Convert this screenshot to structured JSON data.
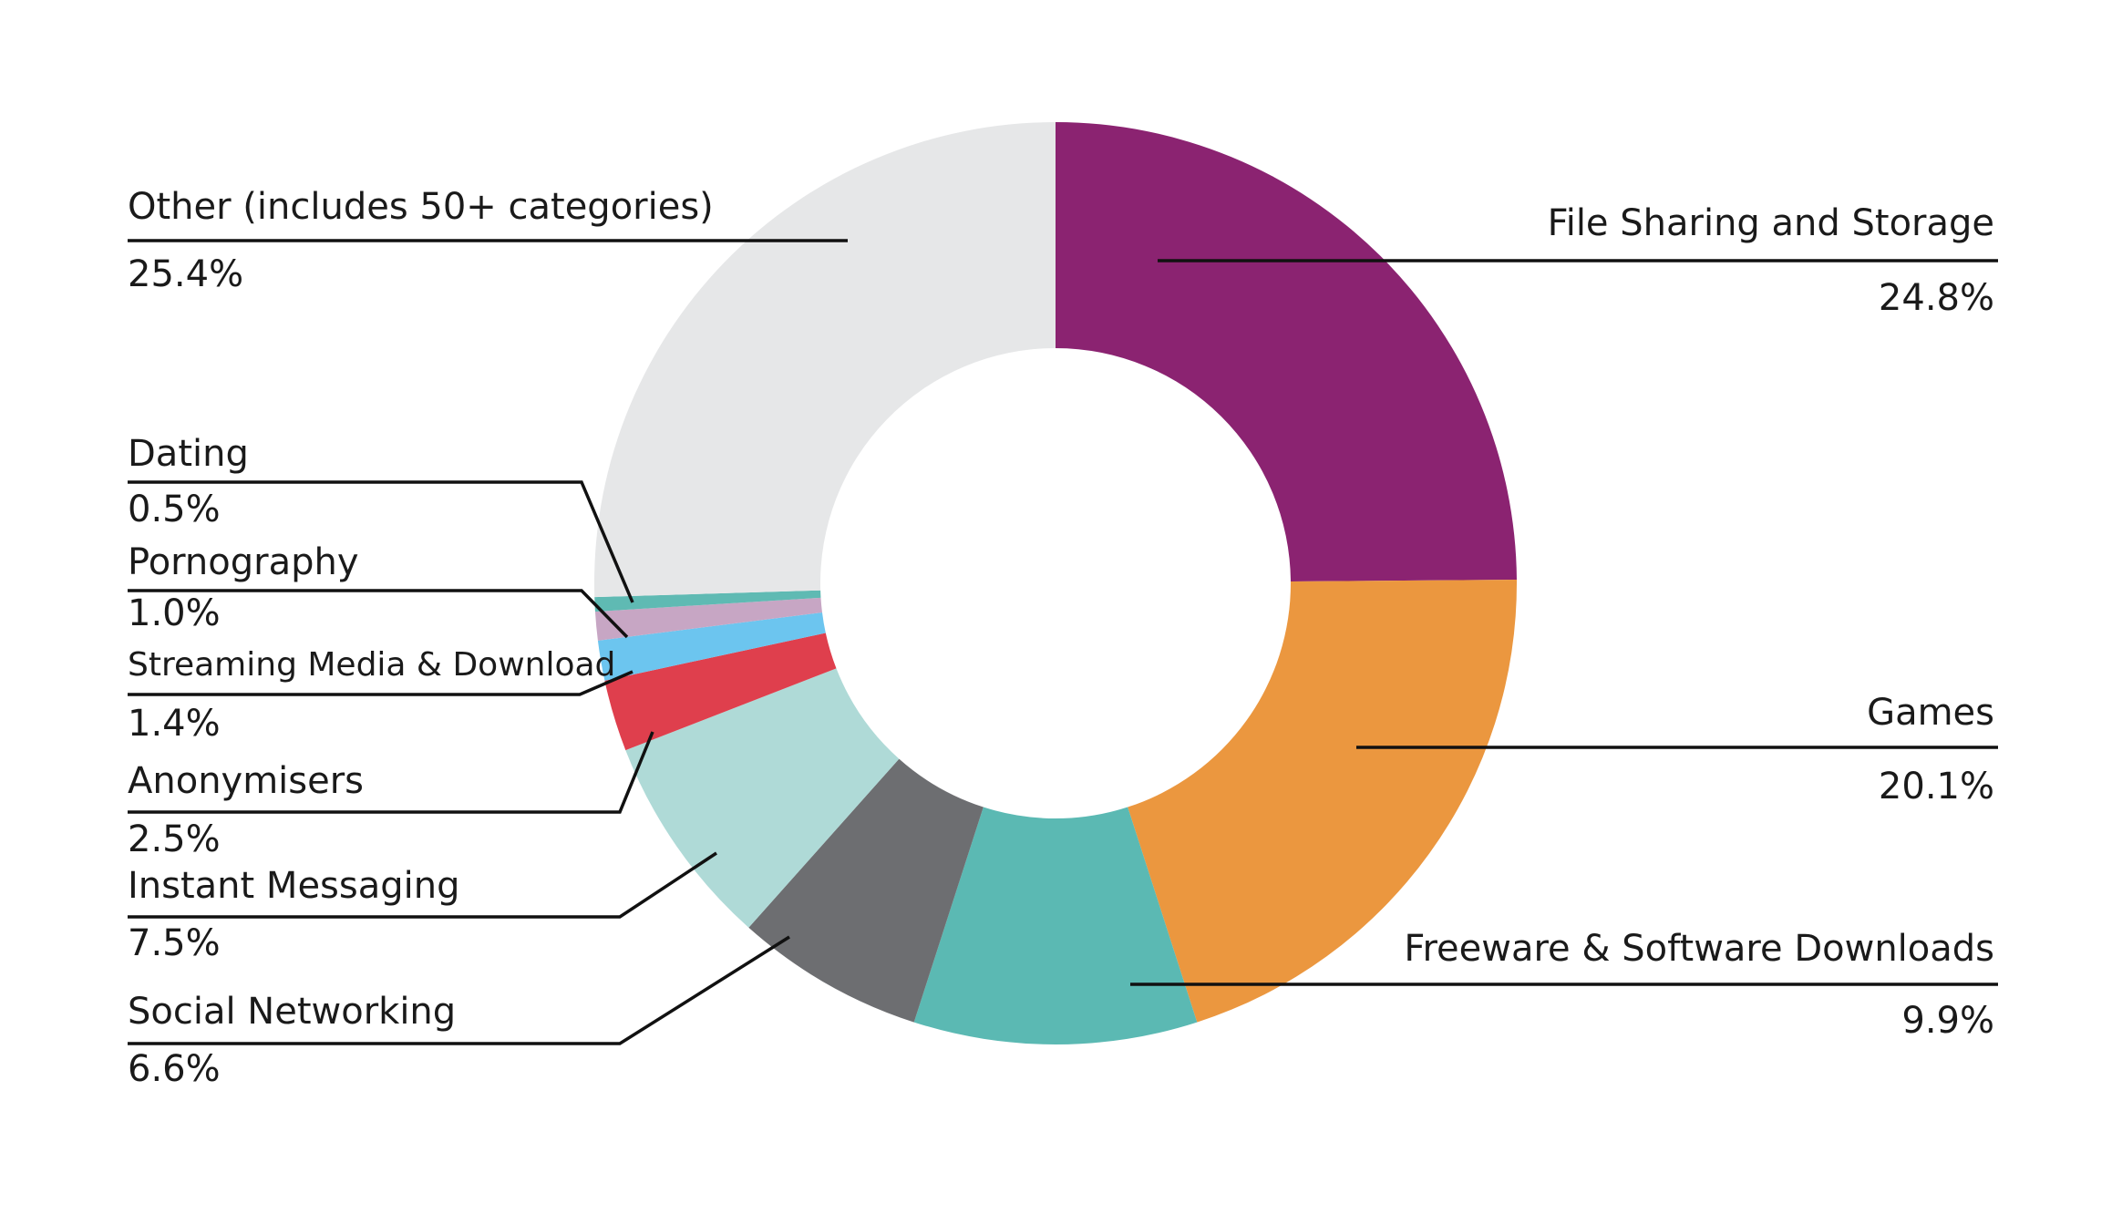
{
  "chart_data": {
    "type": "pie",
    "variant": "donut",
    "slices": [
      {
        "label": "File Sharing and Storage",
        "value": 24.8,
        "display": "24.8%",
        "color": "#8b2371"
      },
      {
        "label": "Games",
        "value": 20.1,
        "display": "20.1%",
        "color": "#eb973f"
      },
      {
        "label": "Freeware & Software Downloads",
        "value": 9.9,
        "display": "9.9%",
        "color": "#5bb9b3"
      },
      {
        "label": "Social Networking",
        "value": 6.6,
        "display": "6.6%",
        "color": "#6d6e71"
      },
      {
        "label": "Instant Messaging",
        "value": 7.5,
        "display": "7.5%",
        "color": "#afdad7"
      },
      {
        "label": "Anonymisers",
        "value": 2.5,
        "display": "2.5%",
        "color": "#df3f4d"
      },
      {
        "label": "Streaming Media & Download",
        "value": 1.4,
        "display": "1.4%",
        "color": "#6cc5ef"
      },
      {
        "label": "Pornography",
        "value": 1.0,
        "display": "1.0%",
        "color": "#c7a6c4"
      },
      {
        "label": "Dating",
        "value": 0.5,
        "display": "0.5%",
        "color": "#5fbab3"
      },
      {
        "label": "Other (includes 50+ categories)",
        "value": 25.4,
        "display": "25.4%",
        "color": "#e6e7e8"
      }
    ],
    "start_angle_deg": 0,
    "direction": "clockwise",
    "legend": "none"
  }
}
